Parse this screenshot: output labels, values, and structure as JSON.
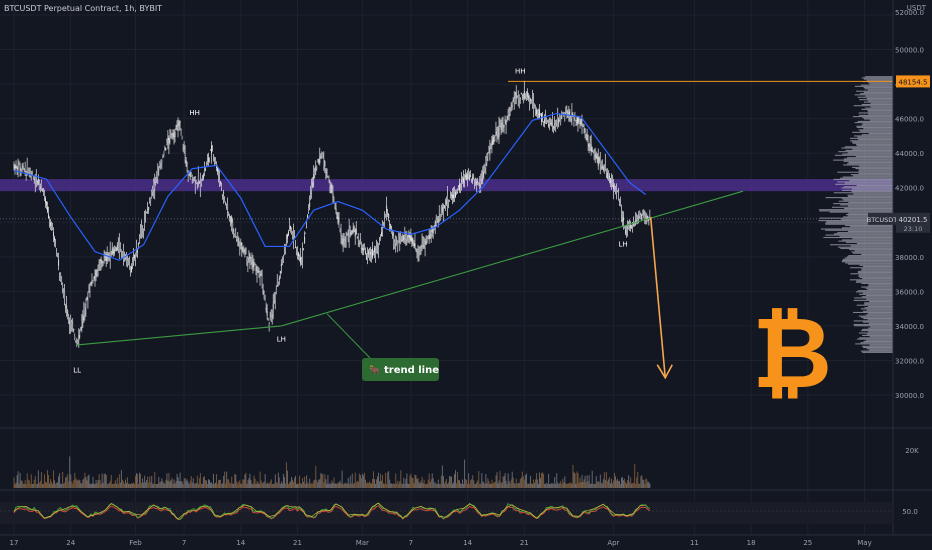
{
  "header": "BTCUSDT Perpetual Contract, 1h, BYBIT",
  "unit": "USDT",
  "colors": {
    "bg": "#131722",
    "grid": "#1e222d",
    "candle": "#e6e6e6",
    "ema": "#2962ff",
    "trend": "#3d9b43",
    "purple": "#4b2e8a",
    "orange": "#f7931a",
    "arrow": "#f5a74b",
    "resistance": "#f7931a"
  },
  "chart_data": {
    "type": "candlestick",
    "symbol": "BTCUSDT",
    "interval": "1h",
    "exchange": "BYBIT",
    "price_axis": [
      "52000.0",
      "50000.0",
      "48000.0",
      "46000.0",
      "44000.0",
      "42000.0",
      "40000.0",
      "38000.0",
      "36000.0",
      "34000.0",
      "32000.0",
      "30000.0"
    ],
    "price_axis_values": [
      52000,
      50000,
      48000,
      46000,
      44000,
      42000,
      40000,
      38000,
      36000,
      34000,
      32000,
      30000
    ],
    "ylim": [
      30000,
      53300
    ],
    "time_axis": [
      "17",
      "24",
      "Feb",
      "7",
      "14",
      "21",
      "Mar",
      "7",
      "14",
      "21",
      "Apr",
      "11",
      "18",
      "25",
      "May"
    ],
    "time_axis_days": [
      0,
      7,
      15,
      21,
      28,
      35,
      43,
      49,
      56,
      63,
      74,
      84,
      91,
      98,
      105
    ],
    "price_path": [
      [
        0,
        43300
      ],
      [
        2,
        42900
      ],
      [
        3.5,
        42000
      ],
      [
        5,
        39000
      ],
      [
        6.5,
        35000
      ],
      [
        7.8,
        33000
      ],
      [
        9.5,
        36500
      ],
      [
        11,
        37800
      ],
      [
        13,
        38600
      ],
      [
        14.5,
        37300
      ],
      [
        16,
        39800
      ],
      [
        17.5,
        42500
      ],
      [
        19,
        44700
      ],
      [
        20.5,
        45600
      ],
      [
        21.5,
        42800
      ],
      [
        23,
        42200
      ],
      [
        24.5,
        44300
      ],
      [
        26,
        41300
      ],
      [
        27.5,
        39000
      ],
      [
        29,
        38000
      ],
      [
        30.5,
        36800
      ],
      [
        31.5,
        34000
      ],
      [
        33,
        37300
      ],
      [
        34,
        39800
      ],
      [
        35.5,
        37700
      ],
      [
        37,
        42800
      ],
      [
        38,
        44000
      ],
      [
        39.5,
        41300
      ],
      [
        40.5,
        38900
      ],
      [
        42,
        39600
      ],
      [
        43.5,
        38000
      ],
      [
        45,
        38400
      ],
      [
        46,
        40700
      ],
      [
        47,
        38700
      ],
      [
        48.5,
        39300
      ],
      [
        50,
        38300
      ],
      [
        51.5,
        39300
      ],
      [
        53,
        40900
      ],
      [
        54.5,
        41700
      ],
      [
        56,
        42700
      ],
      [
        57.5,
        42200
      ],
      [
        59,
        44600
      ],
      [
        60.5,
        45700
      ],
      [
        62,
        47300
      ],
      [
        63.5,
        47300
      ],
      [
        65,
        46100
      ],
      [
        66.5,
        45500
      ],
      [
        68,
        46300
      ],
      [
        70,
        45800
      ],
      [
        71.5,
        44000
      ],
      [
        73,
        43000
      ],
      [
        74.5,
        41700
      ],
      [
        75.5,
        39500
      ],
      [
        76.5,
        40000
      ],
      [
        77.5,
        40400
      ],
      [
        78.5,
        40050
      ]
    ],
    "ema_path": [
      [
        0,
        43000
      ],
      [
        4,
        42500
      ],
      [
        7,
        40300
      ],
      [
        10,
        38300
      ],
      [
        13,
        37800
      ],
      [
        16,
        38700
      ],
      [
        19,
        41500
      ],
      [
        22,
        43100
      ],
      [
        25,
        43300
      ],
      [
        28,
        41400
      ],
      [
        31,
        38600
      ],
      [
        34,
        38600
      ],
      [
        37,
        40700
      ],
      [
        40,
        41200
      ],
      [
        43,
        40700
      ],
      [
        46,
        39600
      ],
      [
        49,
        39300
      ],
      [
        52,
        39700
      ],
      [
        55,
        40700
      ],
      [
        58,
        42100
      ],
      [
        61,
        44000
      ],
      [
        64,
        45900
      ],
      [
        67,
        46300
      ],
      [
        70,
        46100
      ],
      [
        73,
        44200
      ],
      [
        76,
        42300
      ],
      [
        78,
        41600
      ]
    ],
    "last_price": "40201.5",
    "last_price_value": 40201.5,
    "countdown": "23:10",
    "resistance_price": "48154.5",
    "resistance_value": 48154.5,
    "resistance_start_day": 61,
    "zone": [
      41800,
      42500
    ],
    "trend_line": [
      [
        7.8,
        32900
      ],
      [
        33,
        34000
      ],
      [
        90,
        41800
      ]
    ],
    "projection": {
      "from": [
        78.6,
        40300
      ],
      "to": [
        80.4,
        31000
      ]
    },
    "annotations": [
      {
        "text": "HH",
        "day": 22.3,
        "price": 46200
      },
      {
        "text": "HH",
        "day": 62.5,
        "price": 48600
      },
      {
        "text": "LL",
        "day": 7.8,
        "price": 31300
      },
      {
        "text": "LH",
        "day": 33,
        "price": 33100
      },
      {
        "text": "LH",
        "day": 75.2,
        "price": 38600
      }
    ],
    "trend_label": "trend line",
    "volume_axis_label": "20K",
    "oscillator_axis_label": "50.0",
    "oscillator_level": 50
  }
}
